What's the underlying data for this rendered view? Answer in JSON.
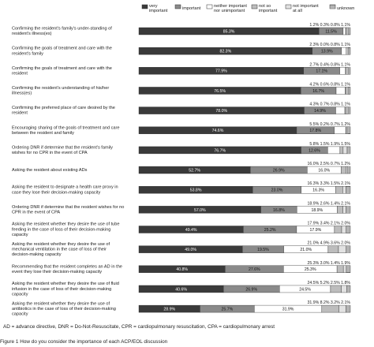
{
  "chart_data": {
    "type": "bar",
    "stacked": true,
    "orientation": "horizontal",
    "xlim": [
      0,
      100
    ],
    "series": [
      {
        "name": "very important",
        "color": "#3a3a3a"
      },
      {
        "name": "important",
        "color": "#8a8a8a"
      },
      {
        "name": "neither important nor unimportant",
        "color": "#ffffff"
      },
      {
        "name": "not so important",
        "color": "#bdbdbd"
      },
      {
        "name": "not important at all",
        "color": "#e2e2e2"
      },
      {
        "name": "unknown",
        "color": "#f2f2f2",
        "pattern": "hatch"
      }
    ],
    "categories": [
      {
        "label": "Confirming the resident's family's under-standing of resident's illness(es)",
        "values": [
          85.3,
          11.5,
          1.2,
          0.3,
          0.8,
          1.1
        ],
        "labels": [
          "85.3%",
          "11.5%",
          "1.2%",
          "0.3%",
          "0.8%",
          "1.1%"
        ]
      },
      {
        "label": "Confirming the goals of treatment and care with the resident's family",
        "values": [
          82.3,
          13.9,
          2.3,
          0.0,
          0.8,
          1.1
        ],
        "labels": [
          "82.3%",
          "13.9%",
          "2.3%",
          "0.0%",
          "0.8%",
          "1.1%"
        ]
      },
      {
        "label": "Confirming the goals of treatment and care with the resident",
        "values": [
          77.9,
          17.1,
          2.7,
          0.4,
          0.8,
          1.1
        ],
        "labels": [
          "77.9%",
          "17.1%",
          "2.7%",
          "0.4%",
          "0.8%",
          "1.1%"
        ]
      },
      {
        "label": "Confirming the resident's understanding of his/her illness(es)",
        "values": [
          76.5,
          16.7,
          4.2,
          0.6,
          0.8,
          1.1
        ],
        "labels": [
          "76.5%",
          "16.7%",
          "4.2%",
          "0.6%",
          "0.8%",
          "1.1%"
        ]
      },
      {
        "label": "Confirming the preferred place of care desired by the resident",
        "values": [
          78.0,
          14.9,
          4.3,
          0.7,
          0.8,
          1.1
        ],
        "labels": [
          "78.0%",
          "14.9%",
          "4.3%",
          "0.7%",
          "0.8%",
          "1.1%"
        ]
      },
      {
        "label": "Encouraging sharing of the goals of treatment and care between the resident and family",
        "values": [
          74.6,
          17.8,
          5.5,
          0.2,
          0.7,
          1.2
        ],
        "labels": [
          "74.6%",
          "17.8%",
          "5.5%",
          "0.2%",
          "0.7%",
          "1.2%"
        ]
      },
      {
        "label": "Ordering DNR if determine that the resident's family wishes for no CPR in the event of CPA",
        "values": [
          76.7,
          12.6,
          5.8,
          1.5,
          1.9,
          1.5
        ],
        "labels": [
          "76.7%",
          "12.6%",
          "5.8%",
          "1.5%",
          "1.9%",
          "1.5%"
        ]
      },
      {
        "label": "Asking the resident about existing ADs",
        "values": [
          52.7,
          26.9,
          16.0,
          2.5,
          0.7,
          1.2
        ],
        "labels": [
          "52.7%",
          "26.9%",
          "16.0%",
          "2.5%",
          "0.7%",
          "1.2%"
        ]
      },
      {
        "label": "Asking the resident to designate a health care proxy in case they lose their decision-making capacity",
        "values": [
          53.8,
          23.0,
          16.3,
          3.3,
          1.5,
          2.1
        ],
        "labels": [
          "53.8%",
          "23.0%",
          "16.3%",
          "3.3%",
          "1.5%",
          "2.1%"
        ]
      },
      {
        "label": "Ordering DNR if determine that the resident wishes for no CPR in the event of CPA",
        "values": [
          57.0,
          16.8,
          18.9,
          2.6,
          1.4,
          2.1
        ],
        "labels": [
          "57.0%",
          "16.8%",
          "18.9%",
          "2.6%",
          "1.4%",
          "2.1%"
        ]
      },
      {
        "label": "Asking the resident whether they desire the use of tube feeding in the case of loss of their decision-making capacity",
        "values": [
          49.4,
          25.2,
          17.9,
          3.4,
          2.1,
          2.0
        ],
        "labels": [
          "49.4%",
          "25.2%",
          "17.9%",
          "3.4%",
          "2.1%",
          "2.0%"
        ]
      },
      {
        "label": "Asking the resident whether they desire the use of mechanical ventilation in the case of loss of their decision-making capacity",
        "values": [
          49.0,
          19.5,
          21.0,
          4.9,
          3.6,
          2.0
        ],
        "labels": [
          "49.0%",
          "19.5%",
          "21.0%",
          "4.9%",
          "3.6%",
          "2.0%"
        ]
      },
      {
        "label": "Recommending that the resident completes an AD in the event they lose their decision-making capacity",
        "values": [
          40.8,
          27.6,
          25.3,
          3.0,
          1.4,
          1.9
        ],
        "labels": [
          "40.8%",
          "27.6%",
          "25.3%",
          "3.0%",
          "1.4%",
          "1.9%"
        ]
      },
      {
        "label": "Asking the resident whether they desire the use of fluid infusion in the case of loss of their decision-making capacity",
        "values": [
          40.6,
          26.9,
          24.5,
          5.2,
          2.5,
          1.8
        ],
        "labels": [
          "40.6%",
          "26.9%",
          "24.5%",
          "5.2%",
          "2.5%",
          "1.8%"
        ]
      },
      {
        "label": "Asking the resident whether they desire the use of antibiotics in the case of loss of their decision-making capacity",
        "values": [
          28.9,
          25.7,
          31.9,
          8.2,
          3.2,
          2.1
        ],
        "labels": [
          "28.9%",
          "25.7%",
          "31.9%",
          "8.2%",
          "3.2%",
          "2.1%"
        ]
      }
    ]
  },
  "footnote": "AD = advance directive, DNR = Do-Not-Resuscitate, CPR = cardiopulmonary resuscitation, CPA = cardiopulmonary arrest",
  "caption": "Figure 1  How do you consider the importance of each ACP/EOL discussion"
}
